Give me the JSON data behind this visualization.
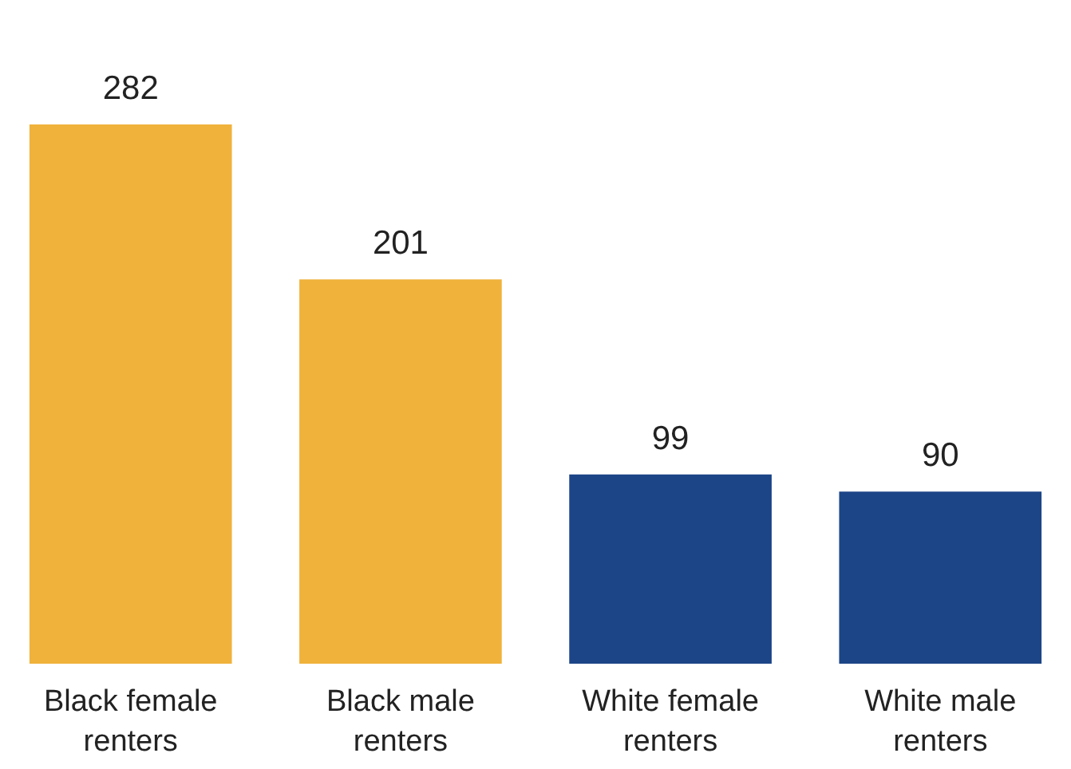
{
  "chart_data": {
    "type": "bar",
    "categories": [
      "Black female renters",
      "Black male renters",
      "White female renters",
      "White male renters"
    ],
    "values": [
      282,
      201,
      99,
      90
    ],
    "colors": [
      "#f0b23b",
      "#f0b23b",
      "#1c4587",
      "#1c4587"
    ],
    "data_labels": true,
    "tick_labels": "x"
  }
}
